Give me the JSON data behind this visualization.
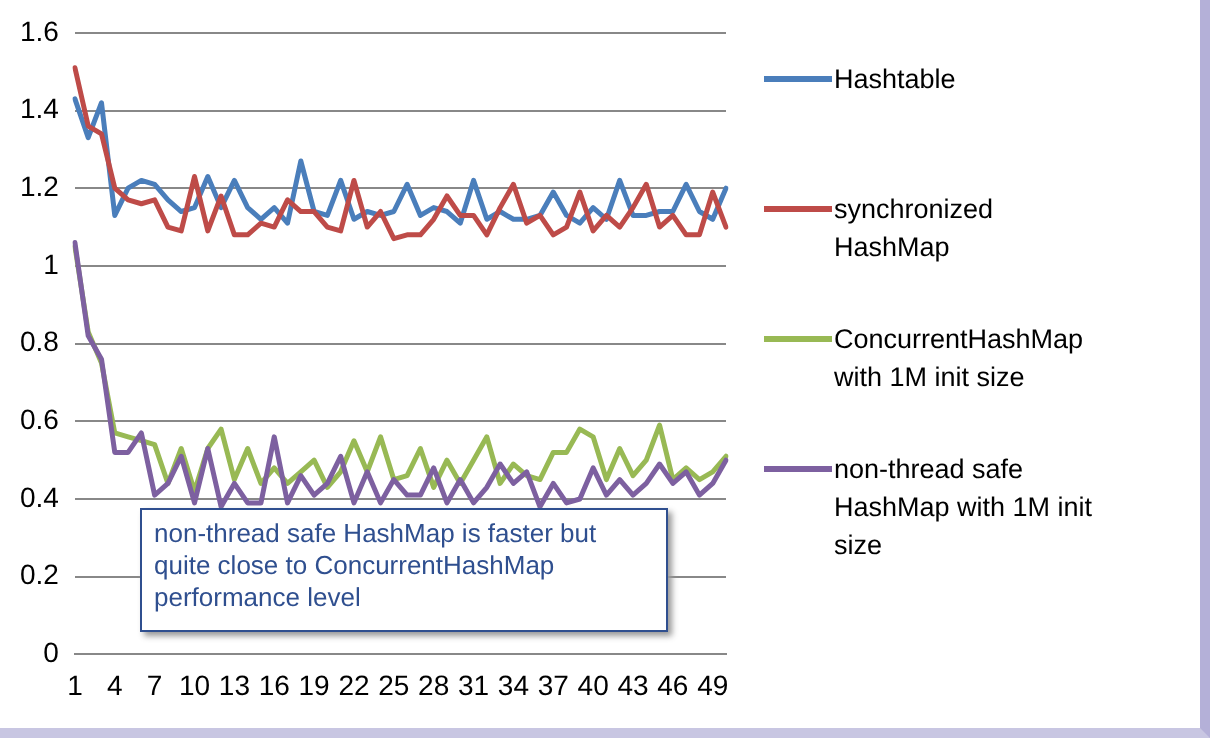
{
  "chart_data": {
    "type": "line",
    "categories": [
      "1",
      null,
      null,
      "4",
      null,
      null,
      "7",
      null,
      null,
      "10",
      null,
      null,
      "13",
      null,
      null,
      "16",
      null,
      null,
      "19",
      null,
      null,
      "22",
      null,
      null,
      "25",
      null,
      null,
      "28",
      null,
      null,
      "31",
      null,
      null,
      "34",
      null,
      null,
      "37",
      null,
      null,
      "40",
      null,
      null,
      "43",
      null,
      null,
      "46",
      null,
      null,
      "49",
      null
    ],
    "series": [
      {
        "name": "Hashtable",
        "color": "#4a7ebb",
        "values": [
          1.43,
          1.33,
          1.42,
          1.13,
          1.2,
          1.22,
          1.21,
          1.17,
          1.14,
          1.15,
          1.23,
          1.15,
          1.22,
          1.15,
          1.12,
          1.15,
          1.11,
          1.27,
          1.14,
          1.13,
          1.22,
          1.12,
          1.14,
          1.13,
          1.14,
          1.21,
          1.13,
          1.15,
          1.14,
          1.11,
          1.22,
          1.12,
          1.14,
          1.12,
          1.12,
          1.13,
          1.19,
          1.13,
          1.11,
          1.15,
          1.12,
          1.22,
          1.13,
          1.13,
          1.14,
          1.14,
          1.21,
          1.14,
          1.12,
          1.2
        ]
      },
      {
        "name": "synchronized HashMap",
        "color": "#be4b48",
        "values": [
          1.51,
          1.36,
          1.34,
          1.2,
          1.17,
          1.16,
          1.17,
          1.1,
          1.09,
          1.23,
          1.09,
          1.18,
          1.08,
          1.08,
          1.11,
          1.1,
          1.17,
          1.14,
          1.14,
          1.1,
          1.09,
          1.22,
          1.1,
          1.14,
          1.07,
          1.08,
          1.08,
          1.12,
          1.18,
          1.13,
          1.13,
          1.08,
          1.15,
          1.21,
          1.11,
          1.13,
          1.08,
          1.1,
          1.19,
          1.09,
          1.13,
          1.1,
          1.15,
          1.21,
          1.1,
          1.13,
          1.08,
          1.08,
          1.19,
          1.1
        ]
      },
      {
        "name": "ConcurrentHashMap with 1M init size",
        "color": "#98b954",
        "values": [
          1.05,
          0.83,
          0.75,
          0.57,
          0.56,
          0.55,
          0.54,
          0.44,
          0.53,
          0.42,
          0.53,
          0.58,
          0.45,
          0.53,
          0.44,
          0.48,
          0.44,
          0.47,
          0.5,
          0.43,
          0.47,
          0.55,
          0.47,
          0.56,
          0.45,
          0.46,
          0.53,
          0.43,
          0.5,
          0.44,
          0.5,
          0.56,
          0.44,
          0.49,
          0.46,
          0.45,
          0.52,
          0.52,
          0.58,
          0.56,
          0.45,
          0.53,
          0.46,
          0.5,
          0.59,
          0.45,
          0.48,
          0.45,
          0.47,
          0.51
        ]
      },
      {
        "name": "non-thread safe HashMap with 1M init size",
        "color": "#7d60a0",
        "values": [
          1.06,
          0.82,
          0.76,
          0.52,
          0.52,
          0.57,
          0.41,
          0.44,
          0.51,
          0.39,
          0.53,
          0.38,
          0.44,
          0.39,
          0.39,
          0.56,
          0.39,
          0.46,
          0.41,
          0.44,
          0.51,
          0.39,
          0.47,
          0.39,
          0.45,
          0.41,
          0.41,
          0.48,
          0.39,
          0.45,
          0.39,
          0.43,
          0.49,
          0.44,
          0.47,
          0.38,
          0.44,
          0.39,
          0.4,
          0.48,
          0.41,
          0.45,
          0.41,
          0.44,
          0.49,
          0.44,
          0.47,
          0.41,
          0.44,
          0.5
        ]
      }
    ],
    "ylim": [
      0,
      1.6
    ],
    "yticks": [
      0,
      0.2,
      0.4,
      0.6,
      0.8,
      1,
      1.2,
      1.4,
      1.6
    ],
    "grid": "y",
    "legend": "right",
    "marker": "none",
    "line_style": "solid",
    "annotations": [
      "non-thread safe HashMap is faster but quite close to ConcurrentHashMap performance level"
    ]
  }
}
